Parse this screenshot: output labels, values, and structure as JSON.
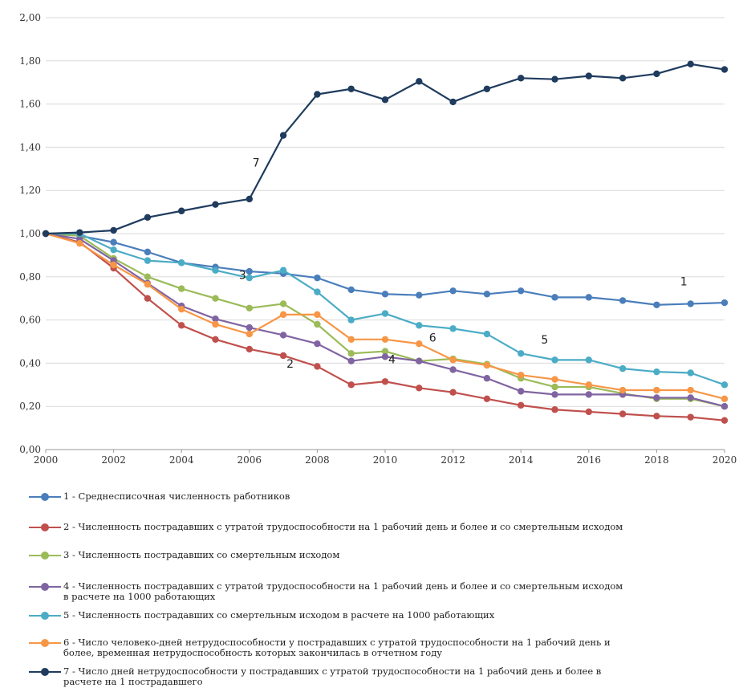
{
  "chart_data": {
    "type": "line",
    "x": [
      2000,
      2001,
      2002,
      2003,
      2004,
      2005,
      2006,
      2007,
      2008,
      2009,
      2010,
      2011,
      2012,
      2013,
      2014,
      2015,
      2016,
      2017,
      2018,
      2019,
      2020
    ],
    "x_ticks": [
      "2000",
      "2002",
      "2004",
      "2006",
      "2008",
      "2010",
      "2012",
      "2014",
      "2016",
      "2018",
      "2020"
    ],
    "y_ticks": [
      "0,00",
      "0,20",
      "0,40",
      "0,60",
      "0,80",
      "1,00",
      "1,20",
      "1,40",
      "1,60",
      "1,80",
      "2,00"
    ],
    "xlim": [
      2000,
      2020
    ],
    "ylim": [
      0,
      2.0
    ],
    "grid": "horizontal",
    "legend_position": "bottom",
    "series": [
      {
        "name": "1 - Среднесписочная численность работников",
        "label": "1",
        "color": "#4a7ebb",
        "values": [
          1.0,
          0.99,
          0.96,
          0.915,
          0.865,
          0.845,
          0.825,
          0.815,
          0.795,
          0.74,
          0.72,
          0.715,
          0.735,
          0.72,
          0.735,
          0.705,
          0.705,
          0.69,
          0.67,
          0.675,
          0.68
        ]
      },
      {
        "name": "2 - Численность пострадавших с утратой трудоспособности на 1 рабочий день и более и со смертельным исходом",
        "label": "2",
        "color": "#c0504d",
        "values": [
          1.0,
          0.96,
          0.84,
          0.7,
          0.575,
          0.51,
          0.465,
          0.435,
          0.385,
          0.3,
          0.315,
          0.285,
          0.265,
          0.235,
          0.205,
          0.185,
          0.175,
          0.165,
          0.155,
          0.15,
          0.135
        ]
      },
      {
        "name": "3 - Численность пострадавших со смертельным исходом",
        "label": "3",
        "color": "#9bbb59",
        "values": [
          1.0,
          0.99,
          0.885,
          0.8,
          0.745,
          0.7,
          0.655,
          0.675,
          0.58,
          0.445,
          0.455,
          0.41,
          0.42,
          0.395,
          0.33,
          0.29,
          0.29,
          0.26,
          0.235,
          0.235,
          0.2
        ]
      },
      {
        "name": "4 - Численность пострадавших с утратой трудоспособности на 1 рабочий день и более и со смертельным исходом\nв расчете на 1000 работающих",
        "label": "4",
        "color": "#8064a2",
        "values": [
          1.0,
          0.975,
          0.875,
          0.77,
          0.665,
          0.605,
          0.565,
          0.53,
          0.49,
          0.41,
          0.43,
          0.41,
          0.37,
          0.33,
          0.27,
          0.255,
          0.255,
          0.255,
          0.24,
          0.24,
          0.2
        ]
      },
      {
        "name": "5 - Численность пострадавших со смертельным исходом в расчете на 1000 работающих",
        "label": "5",
        "color": "#4bacc6",
        "values": [
          1.0,
          1.0,
          0.925,
          0.875,
          0.865,
          0.83,
          0.795,
          0.83,
          0.73,
          0.6,
          0.63,
          0.575,
          0.56,
          0.535,
          0.445,
          0.415,
          0.415,
          0.375,
          0.36,
          0.355,
          0.3
        ]
      },
      {
        "name": "6 - Число человеко-дней нетрудоспособности у пострадавших с утратой трудоспособности на 1 рабочий день и\nболее, временная нетрудоспособность которых закончилась в отчетном году",
        "label": "6",
        "color": "#f79646",
        "values": [
          1.0,
          0.955,
          0.855,
          0.765,
          0.65,
          0.58,
          0.535,
          0.625,
          0.625,
          0.51,
          0.51,
          0.49,
          0.415,
          0.39,
          0.345,
          0.325,
          0.3,
          0.275,
          0.275,
          0.275,
          0.235
        ]
      },
      {
        "name": "7 - Число дней нетрудоспособности у пострадавших с утратой трудоспособности на 1 рабочий день и более в\nрасчете на 1 пострадавшего",
        "label": "7",
        "color": "#1f3b5e",
        "values": [
          1.0,
          1.005,
          1.015,
          1.075,
          1.105,
          1.135,
          1.16,
          1.455,
          1.645,
          1.67,
          1.62,
          1.705,
          1.61,
          1.67,
          1.72,
          1.715,
          1.73,
          1.72,
          1.74,
          1.785,
          1.76
        ]
      }
    ]
  }
}
